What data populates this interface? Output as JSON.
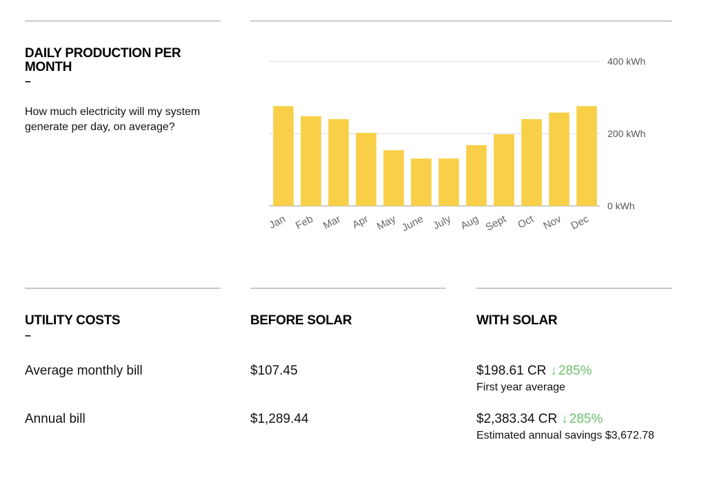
{
  "production": {
    "title": "DAILY PRODUCTION PER MONTH",
    "dash": "–",
    "description": "How much electricity will my system generate per day, on average?"
  },
  "chart_data": {
    "type": "bar",
    "categories": [
      "Jan",
      "Feb",
      "Mar",
      "Apr",
      "May",
      "June",
      "July",
      "Aug",
      "Sept",
      "Oct",
      "Nov",
      "Dec"
    ],
    "values": [
      276,
      248,
      240,
      202,
      154,
      131,
      131,
      168,
      198,
      240,
      258,
      276
    ],
    "ylim": [
      0,
      400
    ],
    "yticks": [
      {
        "value": 0,
        "label": "0 kWh"
      },
      {
        "value": 200,
        "label": "200 kWh"
      },
      {
        "value": 400,
        "label": "400 kWh"
      }
    ],
    "bar_color": "#f8cf47",
    "grid": true
  },
  "utility": {
    "title": "UTILITY COSTS",
    "dash": "–",
    "before_title": "BEFORE SOLAR",
    "with_title": "WITH SOLAR",
    "rows": [
      {
        "label": "Average monthly bill",
        "before": "$107.45",
        "with_value": "$198.61 CR",
        "arrow": "↓",
        "with_pct": "285%",
        "note": "First year average"
      },
      {
        "label": "Annual bill",
        "before": "$1,289.44",
        "with_value": "$2,383.34 CR",
        "arrow": "↓",
        "with_pct": "285%",
        "note": "Estimated annual savings $3,672.78"
      }
    ]
  }
}
